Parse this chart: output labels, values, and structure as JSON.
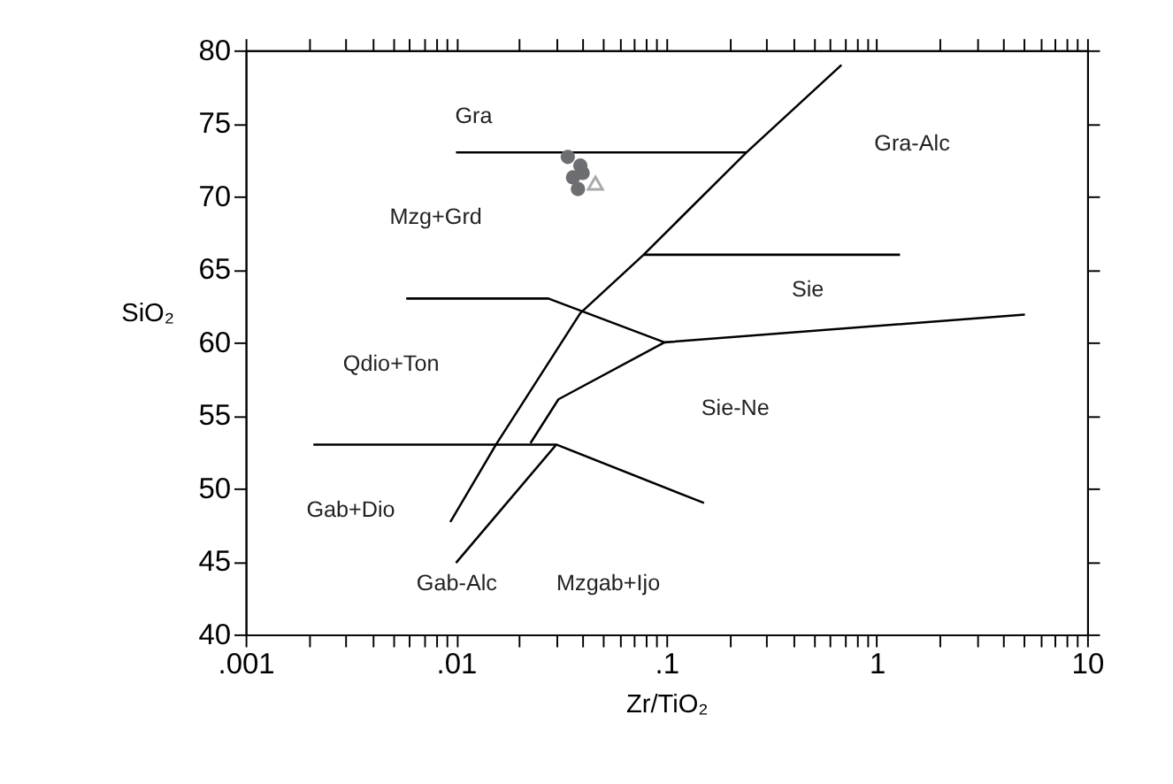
{
  "chart_data": {
    "type": "scatter",
    "xlabel": "Zr/TiO₂",
    "ylabel": "SiO₂",
    "log": "x",
    "grid": false,
    "line_style": "solid",
    "xlim": [
      0.001,
      10
    ],
    "ylim": [
      40,
      80
    ],
    "xticks": [
      {
        "value": 0.001,
        "label": ".001"
      },
      {
        "value": 0.002,
        "label": null
      },
      {
        "value": 0.003,
        "label": null
      },
      {
        "value": 0.004,
        "label": null
      },
      {
        "value": 0.005,
        "label": null
      },
      {
        "value": 0.006,
        "label": null
      },
      {
        "value": 0.007,
        "label": null
      },
      {
        "value": 0.008,
        "label": null
      },
      {
        "value": 0.009,
        "label": null
      },
      {
        "value": 0.01,
        "label": ".01"
      },
      {
        "value": 0.02,
        "label": null
      },
      {
        "value": 0.03,
        "label": null
      },
      {
        "value": 0.04,
        "label": null
      },
      {
        "value": 0.05,
        "label": null
      },
      {
        "value": 0.06,
        "label": null
      },
      {
        "value": 0.07,
        "label": null
      },
      {
        "value": 0.08,
        "label": null
      },
      {
        "value": 0.09,
        "label": null
      },
      {
        "value": 0.1,
        "label": ".1"
      },
      {
        "value": 0.2,
        "label": null
      },
      {
        "value": 0.3,
        "label": null
      },
      {
        "value": 0.4,
        "label": null
      },
      {
        "value": 0.5,
        "label": null
      },
      {
        "value": 0.6,
        "label": null
      },
      {
        "value": 0.7,
        "label": null
      },
      {
        "value": 0.8,
        "label": null
      },
      {
        "value": 0.9,
        "label": null
      },
      {
        "value": 1,
        "label": "1"
      },
      {
        "value": 2,
        "label": null
      },
      {
        "value": 3,
        "label": null
      },
      {
        "value": 4,
        "label": null
      },
      {
        "value": 5,
        "label": null
      },
      {
        "value": 6,
        "label": null
      },
      {
        "value": 7,
        "label": null
      },
      {
        "value": 8,
        "label": null
      },
      {
        "value": 9,
        "label": null
      },
      {
        "value": 10,
        "label": "10"
      }
    ],
    "yticks": [
      40,
      45,
      50,
      55,
      60,
      65,
      70,
      75,
      80
    ],
    "series": [
      {
        "type": "line",
        "color": "#000000",
        "x": [
          0.01,
          0.24
        ],
        "values": [
          73,
          73
        ]
      },
      {
        "type": "line",
        "color": "#000000",
        "x": [
          0.68,
          0.24,
          0.078,
          0.039,
          0.0155,
          0.0094
        ],
        "values": [
          79,
          73,
          66,
          62,
          53,
          47.7
        ]
      },
      {
        "type": "line",
        "color": "#000000",
        "x": [
          0.078,
          1.29
        ],
        "values": [
          66,
          66
        ]
      },
      {
        "type": "line",
        "color": "#000000",
        "x": [
          0.0058,
          0.0275,
          0.098,
          5.06
        ],
        "values": [
          63,
          63,
          60,
          61.9
        ]
      },
      {
        "type": "line",
        "color": "#000000",
        "x": [
          0.098,
          0.0307,
          0.0226
        ],
        "values": [
          60,
          56.1,
          53.1
        ]
      },
      {
        "type": "line",
        "color": "#000000",
        "x": [
          0.0021,
          0.03,
          0.151
        ],
        "values": [
          53,
          53,
          49
        ]
      },
      {
        "type": "line",
        "color": "#000000",
        "x": [
          0.03,
          0.01
        ],
        "values": [
          53,
          44.9
        ]
      },
      {
        "marker": "circle",
        "color": "#6d6e71",
        "x": [
          0.034,
          0.039,
          0.04,
          0.036,
          0.038
        ],
        "values": [
          72.7,
          72.1,
          71.6,
          71.3,
          70.5
        ]
      },
      {
        "marker": "triangle",
        "color": "#a7a9ac",
        "x": [
          0.046
        ],
        "values": [
          70.9
        ]
      }
    ],
    "annotations": [
      "Gra",
      "Gra-Alc",
      "Mzg+Grd",
      "Sie",
      "Qdio+Ton",
      "Sie-Ne",
      "Gab+Dio",
      "Gab-Alc",
      "Mzgab+Ijo"
    ]
  }
}
